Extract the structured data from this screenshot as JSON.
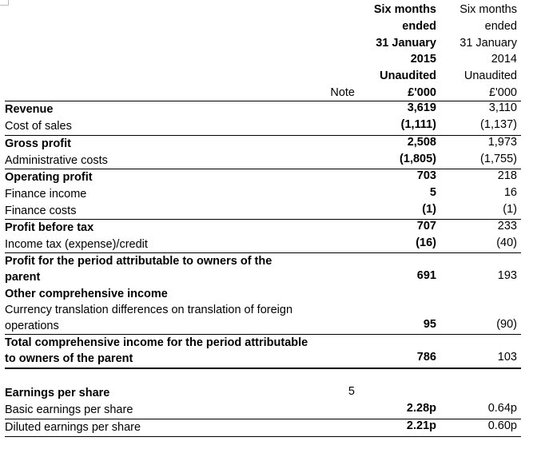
{
  "header": {
    "current": {
      "line1": "Six months",
      "line2": "ended",
      "line3": "31 January",
      "line4": "2015",
      "line5": "Unaudited",
      "line6": "£'000"
    },
    "previous": {
      "line1": "Six months",
      "line2": "ended",
      "line3": "31 January",
      "line4": "2014",
      "line5": "Unaudited",
      "line6": "£'000"
    },
    "note_label": "Note"
  },
  "rows": [
    {
      "label": "Revenue",
      "current": "3,619",
      "previous": "3,110"
    },
    {
      "label": "Cost of sales",
      "current": "(1,111)",
      "previous": "(1,137)"
    },
    {
      "label": "Gross profit",
      "current": "2,508",
      "previous": "1,973"
    },
    {
      "label": "Administrative costs",
      "current": "(1,805)",
      "previous": "(1,755)"
    },
    {
      "label": "Operating profit",
      "current": "703",
      "previous": "218"
    },
    {
      "label": "Finance income",
      "current": "5",
      "previous": "16"
    },
    {
      "label": "Finance costs",
      "current": "(1)",
      "previous": "(1)"
    },
    {
      "label": "Profit before tax",
      "current": "707",
      "previous": "233"
    },
    {
      "label": "Income tax (expense)/credit",
      "current": "(16)",
      "previous": "(40)"
    },
    {
      "label_line1": "Profit for the period attributable to owners of the",
      "label_line2": "parent",
      "current": "691",
      "previous": "193"
    },
    {
      "label": "Other comprehensive income"
    },
    {
      "label_line1": "Currency translation differences on translation of foreign",
      "label_line2": "operations",
      "current": "95",
      "previous": "(90)"
    },
    {
      "label_line1": "Total comprehensive income for the period attributable",
      "label_line2": "to owners of the parent",
      "current": "786",
      "previous": "103"
    },
    {
      "label": "Earnings per share",
      "note": "5"
    },
    {
      "label": "Basic earnings per share",
      "current": "2.28p",
      "previous": "0.64p"
    },
    {
      "label": "Diluted earnings per share",
      "current": "2.21p",
      "previous": "0.60p"
    }
  ]
}
